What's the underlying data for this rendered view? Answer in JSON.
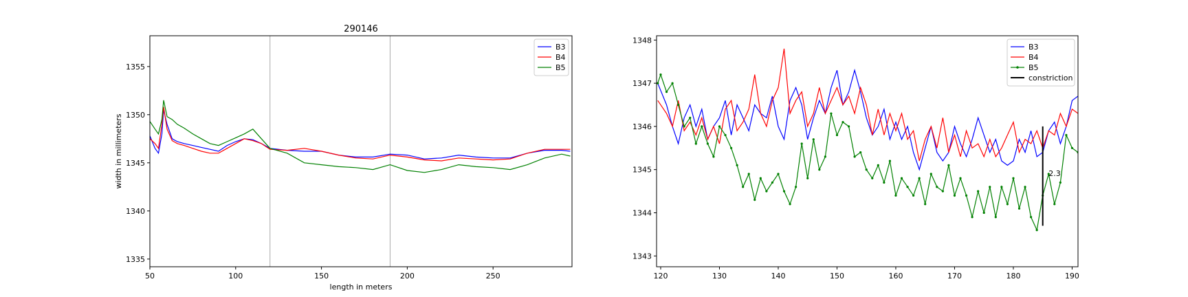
{
  "chart_data": [
    {
      "type": "line",
      "title": "290146",
      "xlabel": "length in meters",
      "ylabel": "width in millimeters",
      "xlim": [
        50,
        296
      ],
      "ylim": [
        1334.2,
        1358.2
      ],
      "xticks": [
        50,
        100,
        150,
        200,
        250
      ],
      "yticks": [
        1335,
        1340,
        1345,
        1350,
        1355
      ],
      "vlines": [
        120,
        190
      ],
      "legend_position": "top-right",
      "series": [
        {
          "name": "B3",
          "color": "#0000ff",
          "x": [
            50,
            53,
            55,
            57,
            58,
            60,
            63,
            66,
            70,
            75,
            80,
            85,
            90,
            95,
            100,
            105,
            110,
            115,
            120,
            130,
            140,
            150,
            160,
            170,
            180,
            190,
            200,
            210,
            220,
            230,
            240,
            250,
            260,
            270,
            280,
            290,
            295
          ],
          "y": [
            1347.8,
            1346.5,
            1346.0,
            1348.0,
            1350.5,
            1349.0,
            1347.5,
            1347.2,
            1347.0,
            1346.8,
            1346.6,
            1346.4,
            1346.2,
            1346.8,
            1347.2,
            1347.5,
            1347.4,
            1347.0,
            1346.5,
            1346.3,
            1346.2,
            1346.2,
            1345.8,
            1345.6,
            1345.6,
            1345.9,
            1345.8,
            1345.4,
            1345.5,
            1345.8,
            1345.6,
            1345.5,
            1345.5,
            1346.0,
            1346.3,
            1346.3,
            1346.2
          ]
        },
        {
          "name": "B4",
          "color": "#ff0000",
          "x": [
            50,
            53,
            55,
            57,
            58,
            60,
            63,
            66,
            70,
            75,
            80,
            85,
            90,
            95,
            100,
            105,
            110,
            115,
            120,
            130,
            140,
            150,
            160,
            170,
            180,
            190,
            200,
            210,
            220,
            230,
            240,
            250,
            260,
            270,
            280,
            290,
            295
          ],
          "y": [
            1347.5,
            1347.0,
            1346.5,
            1349.0,
            1350.8,
            1348.5,
            1347.3,
            1347.0,
            1346.8,
            1346.5,
            1346.2,
            1346.0,
            1346.0,
            1346.5,
            1347.0,
            1347.5,
            1347.3,
            1347.0,
            1346.4,
            1346.3,
            1346.5,
            1346.2,
            1345.8,
            1345.5,
            1345.4,
            1345.8,
            1345.6,
            1345.3,
            1345.2,
            1345.5,
            1345.4,
            1345.3,
            1345.4,
            1346.0,
            1346.4,
            1346.4,
            1346.4
          ]
        },
        {
          "name": "B5",
          "color": "#008000",
          "x": [
            50,
            53,
            55,
            57,
            58,
            60,
            63,
            66,
            70,
            75,
            80,
            85,
            90,
            95,
            100,
            105,
            110,
            115,
            120,
            130,
            140,
            150,
            160,
            170,
            180,
            190,
            200,
            210,
            220,
            230,
            240,
            250,
            260,
            270,
            280,
            290,
            295
          ],
          "y": [
            1349.3,
            1348.5,
            1348.0,
            1349.5,
            1351.5,
            1349.8,
            1349.5,
            1349.0,
            1348.6,
            1348.0,
            1347.5,
            1347.0,
            1346.8,
            1347.2,
            1347.6,
            1348.0,
            1348.5,
            1347.5,
            1346.5,
            1346.0,
            1345.0,
            1344.8,
            1344.6,
            1344.5,
            1344.3,
            1344.8,
            1344.2,
            1344.0,
            1344.3,
            1344.8,
            1344.6,
            1344.5,
            1344.3,
            1344.8,
            1345.5,
            1345.9,
            1345.7
          ]
        }
      ]
    },
    {
      "type": "line",
      "xlim": [
        119.3,
        191
      ],
      "ylim": [
        1342.75,
        1348.1
      ],
      "xticks": [
        120,
        130,
        140,
        150,
        160,
        170,
        180,
        190
      ],
      "yticks": [
        1343,
        1344,
        1345,
        1346,
        1347,
        1348
      ],
      "legend_position": "top-right",
      "annotation": {
        "text": "2.3",
        "x": 186.0,
        "y": 1344.85
      },
      "constriction": {
        "x": 185.0,
        "y0": 1343.7,
        "y1": 1346.0
      },
      "series": [
        {
          "name": "B3",
          "color": "#0000ff",
          "x": [
            119.5,
            121,
            122,
            123,
            124,
            125,
            126,
            127,
            128,
            129,
            130,
            131,
            132,
            133,
            134,
            135,
            136,
            137,
            138,
            139,
            140,
            141,
            142,
            143,
            144,
            145,
            146,
            147,
            148,
            149,
            150,
            151,
            152,
            153,
            154,
            155,
            156,
            157,
            158,
            159,
            160,
            161,
            162,
            163,
            164,
            165,
            166,
            167,
            168,
            169,
            170,
            171,
            172,
            173,
            174,
            175,
            176,
            177,
            178,
            179,
            180,
            181,
            182,
            183,
            184,
            185,
            186,
            187,
            188,
            189,
            190,
            191
          ],
          "y": [
            1347.0,
            1346.5,
            1346.0,
            1345.6,
            1346.2,
            1346.5,
            1346.0,
            1346.4,
            1345.7,
            1346.0,
            1346.2,
            1346.6,
            1345.8,
            1346.5,
            1346.2,
            1345.9,
            1346.5,
            1346.3,
            1346.2,
            1346.7,
            1346.0,
            1345.7,
            1346.6,
            1346.9,
            1346.5,
            1345.7,
            1346.2,
            1346.6,
            1346.3,
            1346.9,
            1347.3,
            1346.5,
            1346.8,
            1347.3,
            1346.8,
            1346.2,
            1345.8,
            1346.0,
            1346.4,
            1345.7,
            1346.1,
            1345.7,
            1346.0,
            1345.4,
            1345.0,
            1345.5,
            1346.0,
            1345.4,
            1345.2,
            1345.4,
            1346.0,
            1345.6,
            1345.3,
            1345.7,
            1346.2,
            1345.8,
            1345.4,
            1345.7,
            1345.2,
            1345.1,
            1345.2,
            1345.7,
            1345.4,
            1345.9,
            1345.3,
            1345.4,
            1345.9,
            1346.1,
            1345.6,
            1346.0,
            1346.6,
            1346.7
          ]
        },
        {
          "name": "B4",
          "color": "#ff0000",
          "x": [
            119.5,
            121,
            122,
            123,
            124,
            125,
            126,
            127,
            128,
            129,
            130,
            131,
            132,
            133,
            134,
            135,
            136,
            137,
            138,
            139,
            140,
            141,
            142,
            143,
            144,
            145,
            146,
            147,
            148,
            149,
            150,
            151,
            152,
            153,
            154,
            155,
            156,
            157,
            158,
            159,
            160,
            161,
            162,
            163,
            164,
            165,
            166,
            167,
            168,
            169,
            170,
            171,
            172,
            173,
            174,
            175,
            176,
            177,
            178,
            179,
            180,
            181,
            182,
            183,
            184,
            185,
            186,
            187,
            188,
            189,
            190,
            191
          ],
          "y": [
            1346.6,
            1346.3,
            1346.0,
            1346.6,
            1345.9,
            1346.1,
            1345.8,
            1346.2,
            1345.7,
            1346.0,
            1345.6,
            1346.4,
            1346.6,
            1345.9,
            1346.1,
            1346.4,
            1347.2,
            1346.3,
            1346.0,
            1346.6,
            1346.9,
            1347.8,
            1346.3,
            1346.6,
            1346.8,
            1346.0,
            1346.3,
            1346.9,
            1346.3,
            1346.6,
            1346.9,
            1346.5,
            1346.7,
            1346.3,
            1346.9,
            1346.5,
            1345.8,
            1346.4,
            1345.8,
            1346.3,
            1345.9,
            1346.3,
            1345.7,
            1345.9,
            1345.2,
            1345.7,
            1346.0,
            1345.5,
            1346.2,
            1345.4,
            1345.8,
            1345.3,
            1345.9,
            1345.5,
            1345.6,
            1345.3,
            1345.7,
            1345.3,
            1345.5,
            1345.8,
            1346.1,
            1345.4,
            1345.7,
            1345.6,
            1345.9,
            1345.5,
            1345.9,
            1345.8,
            1346.3,
            1346.0,
            1346.4,
            1346.3
          ]
        },
        {
          "name": "B5",
          "color": "#008000",
          "x": [
            119.5,
            120,
            121,
            122,
            123,
            124,
            125,
            126,
            127,
            128,
            129,
            130,
            131,
            132,
            133,
            134,
            135,
            136,
            137,
            138,
            139,
            140,
            141,
            142,
            143,
            144,
            145,
            146,
            147,
            148,
            149,
            150,
            151,
            152,
            153,
            154,
            155,
            156,
            157,
            158,
            159,
            160,
            161,
            162,
            163,
            164,
            165,
            166,
            167,
            168,
            169,
            170,
            171,
            172,
            173,
            174,
            175,
            176,
            177,
            178,
            179,
            180,
            181,
            182,
            183,
            184,
            185,
            186,
            187,
            188,
            189,
            190,
            191
          ],
          "y": [
            1347.0,
            1347.2,
            1346.8,
            1347.0,
            1346.5,
            1346.0,
            1346.2,
            1345.6,
            1346.0,
            1345.6,
            1345.3,
            1346.0,
            1345.8,
            1345.5,
            1345.1,
            1344.6,
            1344.9,
            1344.3,
            1344.8,
            1344.5,
            1344.7,
            1344.9,
            1344.5,
            1344.2,
            1344.6,
            1345.6,
            1344.8,
            1345.7,
            1345.0,
            1345.3,
            1346.3,
            1345.8,
            1346.1,
            1346.0,
            1345.3,
            1345.4,
            1345.0,
            1344.8,
            1345.1,
            1344.7,
            1345.2,
            1344.4,
            1344.8,
            1344.6,
            1344.4,
            1344.8,
            1344.2,
            1344.9,
            1344.6,
            1344.5,
            1345.1,
            1344.4,
            1344.8,
            1344.4,
            1343.9,
            1344.5,
            1344.0,
            1344.6,
            1343.9,
            1344.6,
            1344.2,
            1344.8,
            1344.1,
            1344.6,
            1343.9,
            1343.6,
            1344.4,
            1344.9,
            1344.2,
            1344.7,
            1345.8,
            1345.5,
            1345.4
          ]
        }
      ],
      "legend_extra": {
        "name": "constriction",
        "color": "#000000"
      }
    }
  ]
}
